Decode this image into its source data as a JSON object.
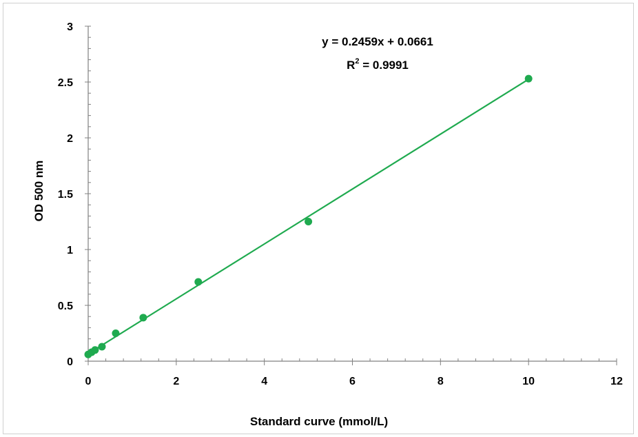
{
  "chart_data": {
    "type": "scatter",
    "xlabel": "Standard curve (mmol/L)",
    "ylabel": "OD 500 nm",
    "xlim": [
      0,
      12
    ],
    "ylim": [
      0,
      3
    ],
    "x_ticks": [
      0,
      2,
      4,
      6,
      8,
      10,
      12
    ],
    "y_ticks": [
      0,
      0.5,
      1,
      1.5,
      2,
      2.5,
      3
    ],
    "x_tick_labels": [
      "0",
      "2",
      "4",
      "6",
      "8",
      "10",
      "12"
    ],
    "y_tick_labels": [
      "0",
      "0.5",
      "1",
      "1.5",
      "2",
      "2.5",
      "3"
    ],
    "grid": false,
    "series": [
      {
        "x": [
          0,
          0.078,
          0.156,
          0.3125,
          0.625,
          1.25,
          2.5,
          5,
          10
        ],
        "y": [
          0.06,
          0.08,
          0.1,
          0.13,
          0.25,
          0.39,
          0.71,
          1.25,
          2.53
        ],
        "color": "#1faa4f"
      }
    ],
    "trendline": {
      "slope": 0.2459,
      "intercept": 0.0661,
      "color": "#1faa4f",
      "equation": "y = 0.2459x + 0.0661",
      "r2_label": "R",
      "r2_sup": "2",
      "r2_value": " = 0.9991"
    }
  }
}
